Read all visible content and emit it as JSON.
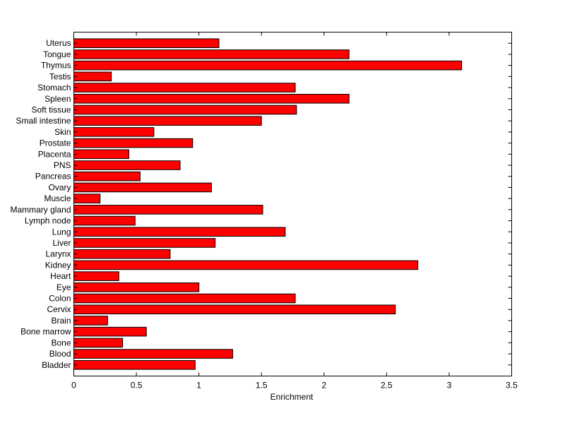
{
  "chart_data": {
    "type": "bar",
    "orientation": "horizontal",
    "categories": [
      "Uterus",
      "Tongue",
      "Thymus",
      "Testis",
      "Stomach",
      "Spleen",
      "Soft tissue",
      "Small intestine",
      "Skin",
      "Prostate",
      "Placenta",
      "PNS",
      "Pancreas",
      "Ovary",
      "Muscle",
      "Mammary gland",
      "Lymph node",
      "Lung",
      "Liver",
      "Larynx",
      "Kidney",
      "Heart",
      "Eye",
      "Colon",
      "Cervix",
      "Brain",
      "Bone marrow",
      "Bone",
      "Blood",
      "Bladder"
    ],
    "values": [
      1.16,
      2.2,
      3.1,
      0.3,
      1.77,
      2.2,
      1.78,
      1.5,
      0.64,
      0.95,
      0.44,
      0.85,
      0.53,
      1.1,
      0.21,
      1.51,
      0.49,
      1.69,
      1.13,
      0.77,
      2.75,
      0.36,
      1.0,
      1.77,
      2.57,
      0.27,
      0.58,
      0.39,
      1.27,
      0.97
    ],
    "title": "",
    "xlabel": "Enrichment",
    "ylabel": "",
    "xlim": [
      0,
      3.5
    ],
    "xticks": [
      "0",
      "0.5",
      "1",
      "1.5",
      "2",
      "2.5",
      "3",
      "3.5"
    ],
    "bar_color": "#ff0000",
    "grid": false,
    "legend": "none"
  }
}
